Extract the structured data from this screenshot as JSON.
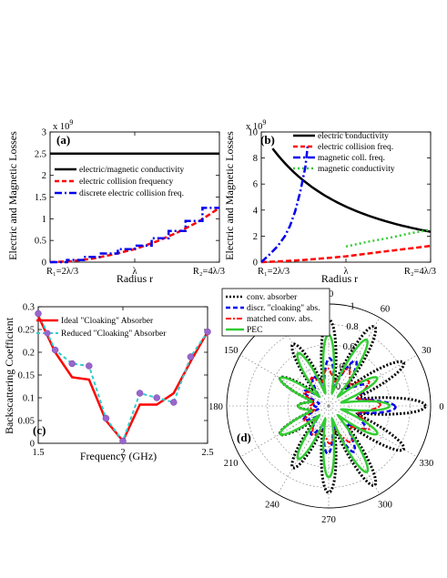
{
  "colors": {
    "black": "#000000",
    "red": "#ff0000",
    "blue": "#0000ee",
    "green": "#33cc33",
    "purple": "#9966cc",
    "purple_dash": "#33cccc"
  },
  "panels": {
    "a": {
      "label": "(a)",
      "ylabel": "Electric and Magnetic Losses",
      "xlabel": "Radius r",
      "exponent": "x 10",
      "exponent_power": "9",
      "yticks": [
        "0",
        "0.5",
        "1",
        "1.5",
        "2",
        "2.5",
        "3"
      ],
      "xticks": [
        "R₁=2λ/3",
        "λ",
        "R₂=4λ/3"
      ],
      "legend": [
        "electric/magnetic conductivity",
        "electric collision frequency",
        "discrete electric collision freq."
      ]
    },
    "b": {
      "label": "(b)",
      "ylabel": "Electric and Magnetic Losses",
      "xlabel": "Radius r",
      "exponent": "x 10",
      "exponent_power": "9",
      "yticks": [
        "0",
        "2",
        "4",
        "6",
        "8",
        "10"
      ],
      "xticks": [
        "R₁=2λ/3",
        "λ",
        "R₂=4λ/3"
      ],
      "legend": [
        "electric conductivity",
        "electric collision freq.",
        "magnetic coll. freq.",
        "magnetic conductivity"
      ]
    },
    "c": {
      "label": "(c)",
      "ylabel": "Backscattering Coefficient",
      "xlabel": "Frequency (GHz)",
      "yticks": [
        "0",
        "0.05",
        "0.1",
        "0.15",
        "0.2",
        "0.25",
        "0.3"
      ],
      "xticks": [
        "1.5",
        "2",
        "2.5"
      ],
      "legend": [
        "Ideal \"Cloaking\" Absorber",
        "Reduced \"Cloaking\" Absorber"
      ]
    },
    "d": {
      "label": "(d)",
      "angle_labels": [
        "0",
        "30",
        "60",
        "90",
        "120",
        "150",
        "180",
        "210",
        "240",
        "270",
        "300",
        "330"
      ],
      "radial_labels": [
        "0.2",
        "0.4",
        "0.6",
        "0.8",
        "1"
      ],
      "legend": [
        "conv. absorber",
        "discr. \"cloaking\" abs.",
        "matched conv. abs.",
        "PEC"
      ]
    }
  },
  "chart_data": [
    {
      "panel": "a",
      "type": "line",
      "xlabel": "Radius r",
      "ylabel": "Electric and Magnetic Losses",
      "x": [
        0.6667,
        0.75,
        0.8333,
        0.9167,
        1.0,
        1.0833,
        1.1667,
        1.25,
        1.3333
      ],
      "xlim": [
        0.6667,
        1.3333
      ],
      "ylim": [
        0,
        3.0
      ],
      "y_scale_note": "x 10^9",
      "series": [
        {
          "name": "electric/magnetic conductivity",
          "values": [
            2.5,
            2.5,
            2.5,
            2.5,
            2.5,
            2.5,
            2.5,
            2.5,
            2.5
          ]
        },
        {
          "name": "electric collision frequency",
          "values": [
            0.0,
            0.02,
            0.08,
            0.18,
            0.3,
            0.47,
            0.68,
            0.93,
            1.25
          ]
        },
        {
          "name": "discrete electric collision freq.",
          "step_x": [
            0.6667,
            0.7333,
            0.8,
            0.8667,
            0.9333,
            1.0,
            1.0667,
            1.1333,
            1.2,
            1.2667,
            1.3333
          ],
          "step_values": [
            0.0,
            0.05,
            0.12,
            0.2,
            0.3,
            0.38,
            0.55,
            0.72,
            0.95,
            1.25
          ]
        }
      ]
    },
    {
      "panel": "b",
      "type": "line",
      "xlabel": "Radius r",
      "ylabel": "Electric and Magnetic Losses",
      "x": [
        0.6667,
        0.75,
        0.8333,
        0.9167,
        1.0,
        1.0833,
        1.1667,
        1.25,
        1.3333
      ],
      "xlim": [
        0.6667,
        1.3333
      ],
      "ylim": [
        0,
        10
      ],
      "y_scale_note": "x 10^9",
      "series": [
        {
          "name": "electric conductivity",
          "values": [
            10.0,
            6.9,
            5.3,
            4.3,
            3.6,
            3.2,
            2.9,
            2.6,
            2.5
          ]
        },
        {
          "name": "electric collision freq.",
          "values": [
            0.0,
            0.07,
            0.17,
            0.3,
            0.45,
            0.65,
            0.85,
            1.05,
            1.25
          ]
        },
        {
          "name": "magnetic coll. freq.",
          "x": [
            0.6667,
            0.7,
            0.73,
            0.76,
            0.78,
            0.8,
            0.82,
            0.84,
            0.85
          ],
          "values": [
            0.0,
            0.6,
            1.2,
            2.0,
            2.8,
            3.9,
            5.4,
            7.3,
            9.0
          ]
        },
        {
          "name": "magnetic conductivity",
          "x": [
            1.0,
            1.0833,
            1.1667,
            1.25,
            1.3333
          ],
          "values": [
            1.2,
            1.55,
            1.85,
            2.2,
            2.5
          ]
        }
      ]
    },
    {
      "panel": "c",
      "type": "line",
      "xlabel": "Frequency (GHz)",
      "ylabel": "Backscattering Coefficient",
      "x": [
        1.5,
        1.6,
        1.7,
        1.8,
        1.9,
        2.0,
        2.1,
        2.2,
        2.3,
        2.4,
        2.5
      ],
      "xlim": [
        1.5,
        2.5
      ],
      "ylim": [
        0,
        0.3
      ],
      "series": [
        {
          "name": "Ideal \"Cloaking\" Absorber",
          "values": [
            0.28,
            0.2,
            0.145,
            0.14,
            0.05,
            0.005,
            0.085,
            0.085,
            0.11,
            0.18,
            0.245
          ]
        },
        {
          "name": "Reduced \"Cloaking\" Absorber",
          "values": [
            0.285,
            0.205,
            0.175,
            0.17,
            0.055,
            0.005,
            0.11,
            0.1,
            0.09,
            0.19,
            0.245
          ]
        }
      ]
    },
    {
      "panel": "d",
      "type": "polar",
      "rlim": [
        0,
        1
      ],
      "angles_deg": [
        0,
        15,
        30,
        45,
        60,
        75,
        90,
        105,
        120,
        135,
        150,
        165,
        180,
        195,
        210,
        225,
        240,
        255,
        270,
        285,
        300,
        315,
        330,
        345
      ],
      "series": [
        {
          "name": "conv. absorber",
          "values": [
            0.95,
            0.35,
            0.85,
            0.3,
            0.9,
            0.3,
            0.85,
            0.3,
            0.7,
            0.25,
            0.55,
            0.2,
            0.3,
            0.2,
            0.55,
            0.25,
            0.7,
            0.3,
            0.85,
            0.3,
            0.9,
            0.3,
            0.85,
            0.35
          ]
        },
        {
          "name": "discr. \"cloaking\" abs.",
          "values": [
            0.7,
            0.3,
            0.45,
            0.25,
            0.55,
            0.2,
            0.5,
            0.2,
            0.35,
            0.15,
            0.3,
            0.1,
            0.15,
            0.1,
            0.3,
            0.15,
            0.35,
            0.2,
            0.5,
            0.2,
            0.55,
            0.25,
            0.45,
            0.3
          ]
        },
        {
          "name": "matched conv. abs.",
          "values": [
            0.55,
            0.3,
            0.5,
            0.3,
            0.45,
            0.25,
            0.4,
            0.25,
            0.35,
            0.2,
            0.3,
            0.15,
            0.2,
            0.15,
            0.3,
            0.2,
            0.35,
            0.25,
            0.4,
            0.25,
            0.45,
            0.3,
            0.5,
            0.3
          ]
        },
        {
          "name": "PEC",
          "values": [
            0.6,
            0.15,
            0.55,
            0.15,
            0.75,
            0.15,
            0.7,
            0.15,
            0.6,
            0.15,
            0.55,
            0.2,
            0.3,
            0.2,
            0.55,
            0.15,
            0.6,
            0.15,
            0.7,
            0.15,
            0.75,
            0.15,
            0.55,
            0.15
          ]
        }
      ]
    }
  ]
}
